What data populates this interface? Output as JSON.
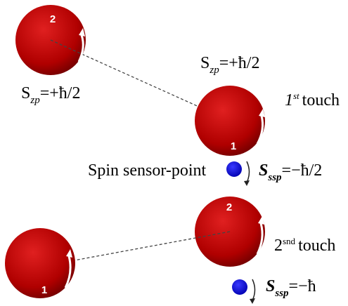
{
  "spheres": [
    {
      "label": "2"
    },
    {
      "label": "1"
    },
    {
      "label": "2"
    },
    {
      "label": "1"
    }
  ],
  "formulas": [
    {
      "symbol": "S",
      "subscript": "zp",
      "rhs": "=+ħ/2"
    },
    {
      "symbol": "S",
      "subscript": "zp",
      "rhs": "=+ħ/2"
    },
    {
      "symbol": "S",
      "subscript": "ssp",
      "rhs": "=−ħ/2"
    },
    {
      "symbol": "S",
      "subscript": "ssp",
      "rhs": "=−ħ"
    }
  ],
  "touches": [
    {
      "ordinal": "1",
      "suffix": "st",
      "text": "touch"
    },
    {
      "ordinal": "2",
      "suffix": "snd",
      "text": "touch"
    }
  ],
  "sensor_label": "Spin sensor-point"
}
